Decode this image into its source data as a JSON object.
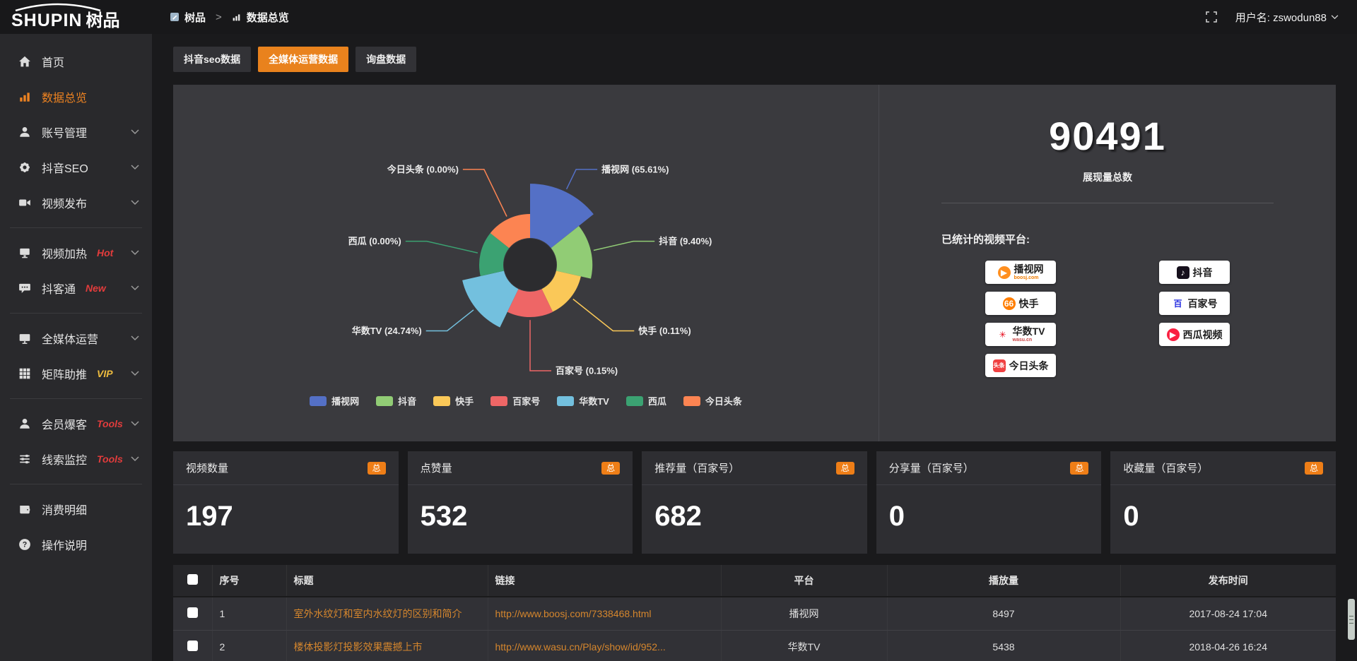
{
  "brand": {
    "name": "SHUPIN",
    "suffix": "树品"
  },
  "topbar": {
    "breadcrumb_root": "树品",
    "breadcrumb_sep": ">",
    "breadcrumb_current": "数据总览",
    "username": "用户名: zswodun88"
  },
  "sidebar": {
    "items": [
      {
        "label": "首页",
        "icon": "home",
        "active": false,
        "chevron": false,
        "divider_after": false
      },
      {
        "label": "数据总览",
        "icon": "chart",
        "active": true,
        "chevron": false,
        "divider_after": false
      },
      {
        "label": "账号管理",
        "icon": "user",
        "active": false,
        "chevron": true,
        "divider_after": false
      },
      {
        "label": "抖音SEO",
        "icon": "gear",
        "active": false,
        "chevron": true,
        "divider_after": false
      },
      {
        "label": "视频发布",
        "icon": "video",
        "active": false,
        "chevron": true,
        "divider_after": true
      },
      {
        "label": "视频加热",
        "icon": "tv",
        "badge": "Hot",
        "badge_color": "#e23c3c",
        "active": false,
        "chevron": true,
        "divider_after": false
      },
      {
        "label": "抖客通",
        "icon": "chat",
        "badge": "New",
        "badge_color": "#e23c3c",
        "active": false,
        "chevron": true,
        "divider_after": true
      },
      {
        "label": "全媒体运营",
        "icon": "monitor",
        "active": false,
        "chevron": true,
        "divider_after": false
      },
      {
        "label": "矩阵助推",
        "icon": "grid",
        "badge": "VIP",
        "badge_color": "#eebc3f",
        "active": false,
        "chevron": true,
        "divider_after": true
      },
      {
        "label": "会员爆客",
        "icon": "user2",
        "badge": "Tools",
        "badge_color": "#e23c3c",
        "active": false,
        "chevron": true,
        "divider_after": false
      },
      {
        "label": "线索监控",
        "icon": "sliders",
        "badge": "Tools",
        "badge_color": "#e23c3c",
        "active": false,
        "chevron": true,
        "divider_after": true
      },
      {
        "label": "消费明细",
        "icon": "wallet",
        "active": false,
        "chevron": false,
        "divider_after": false
      },
      {
        "label": "操作说明",
        "icon": "question",
        "active": false,
        "chevron": false,
        "divider_after": false
      }
    ]
  },
  "tabs": [
    {
      "label": "抖音seo数据",
      "active": false
    },
    {
      "label": "全媒体运营数据",
      "active": true
    },
    {
      "label": "询盘数据",
      "active": false
    }
  ],
  "chart_data": {
    "type": "pie",
    "variant": "nightingale-rose-donut",
    "label_format": "{name} ({pct}%)",
    "legend_position": "bottom",
    "items": [
      {
        "name": "播视网",
        "value_pct": 65.61,
        "pct_label": "65.61",
        "color": "#5470c6"
      },
      {
        "name": "抖音",
        "value_pct": 9.4,
        "pct_label": "9.40",
        "color": "#91cc75"
      },
      {
        "name": "快手",
        "value_pct": 0.11,
        "pct_label": "0.11",
        "color": "#fac858"
      },
      {
        "name": "百家号",
        "value_pct": 0.15,
        "pct_label": "0.15",
        "color": "#ee6666"
      },
      {
        "name": "华数TV",
        "value_pct": 24.74,
        "pct_label": "24.74",
        "color": "#73c0de"
      },
      {
        "name": "西瓜",
        "value_pct": 0,
        "pct_label": "0.00",
        "color": "#3ba272"
      },
      {
        "name": "今日头条",
        "value_pct": 0,
        "pct_label": "0.00",
        "color": "#fc8452"
      }
    ],
    "legend": [
      "播视网",
      "抖音",
      "快手",
      "百家号",
      "华数TV",
      "西瓜",
      "今日头条"
    ]
  },
  "summary": {
    "total": "90491",
    "total_label": "展现量总数",
    "platforms_title": "已统计的视频平台:",
    "platforms": [
      {
        "name": "播视网",
        "sub": "boosj.com",
        "sub_color": "#f07c00",
        "icon_text": "▶",
        "icon_bg": "#ff8f1f",
        "icon_fg": "#ffffff",
        "round": true
      },
      {
        "name": "抖音",
        "icon_text": "♪",
        "icon_bg": "#16101c",
        "icon_fg": "#ffffff",
        "round": false
      },
      {
        "name": "快手",
        "icon_text": "66",
        "icon_bg": "#ff7e00",
        "icon_fg": "#ffffff",
        "round": true
      },
      {
        "name": "百家号",
        "icon_text": "百",
        "icon_bg": "#ffffff",
        "icon_fg": "#2932e1",
        "round": false
      },
      {
        "name": "华数TV",
        "sub": "wasu.cn",
        "sub_color": "#cc4444",
        "icon_text": "✳",
        "icon_bg": "transparent",
        "icon_fg": "#e60012",
        "round": false
      },
      {
        "name": "西瓜视频",
        "icon_text": "▶",
        "icon_bg": "#fa1f41",
        "icon_fg": "#ffffff",
        "round": true
      },
      {
        "name": "今日头条",
        "icon_text": "头条",
        "icon_bg": "#f04142",
        "icon_fg": "#ffffff",
        "round": false,
        "small": true
      }
    ]
  },
  "stat_cards": [
    {
      "label": "视频数量",
      "badge": "总",
      "value": "197"
    },
    {
      "label": "点赞量",
      "badge": "总",
      "value": "532"
    },
    {
      "label": "推荐量（百家号）",
      "badge": "总",
      "value": "682"
    },
    {
      "label": "分享量（百家号）",
      "badge": "总",
      "value": "0"
    },
    {
      "label": "收藏量（百家号）",
      "badge": "总",
      "value": "0"
    }
  ],
  "table": {
    "headers": [
      "序号",
      "标题",
      "链接",
      "平台",
      "播放量",
      "发布时间"
    ],
    "rows": [
      {
        "no": "1",
        "title": "室外水纹灯和室内水纹灯的区别和简介",
        "link": "http://www.boosj.com/7338468.html",
        "platform": "播视网",
        "views": "8497",
        "time": "2017-08-24 17:04"
      },
      {
        "no": "2",
        "title": "楼体投影灯投影效果震撼上市",
        "link": "http://www.wasu.cn/Play/show/id/952...",
        "platform": "华数TV",
        "views": "5438",
        "time": "2018-04-26 16:24"
      }
    ]
  }
}
